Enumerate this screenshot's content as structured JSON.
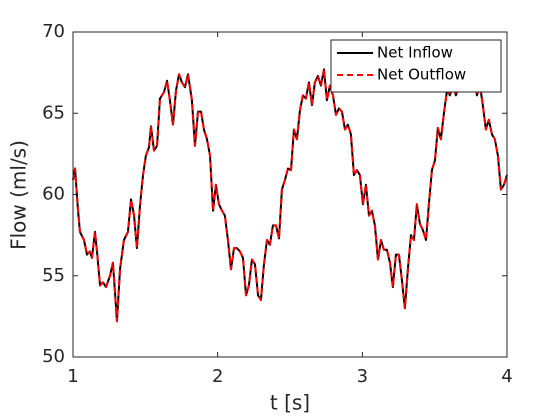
{
  "chart_data": {
    "type": "line",
    "xlabel": "t [s]",
    "ylabel": "Flow (ml/s)",
    "x": [
      1.0,
      1.014,
      1.035,
      1.048,
      1.076,
      1.097,
      1.117,
      1.131,
      1.152,
      1.166,
      1.187,
      1.207,
      1.228,
      1.256,
      1.276,
      1.304,
      1.325,
      1.352,
      1.38,
      1.401,
      1.422,
      1.442,
      1.463,
      1.484,
      1.504,
      1.525,
      1.539,
      1.56,
      1.581,
      1.601,
      1.629,
      1.65,
      1.67,
      1.691,
      1.712,
      1.733,
      1.753,
      1.774,
      1.795,
      1.822,
      1.843,
      1.864,
      1.885,
      1.905,
      1.926,
      1.947,
      1.968,
      1.988,
      2.009,
      2.03,
      2.05,
      2.071,
      2.092,
      2.113,
      2.133,
      2.154,
      2.175,
      2.196,
      2.216,
      2.237,
      2.258,
      2.279,
      2.299,
      2.32,
      2.341,
      2.361,
      2.382,
      2.403,
      2.424,
      2.444,
      2.465,
      2.486,
      2.507,
      2.527,
      2.548,
      2.569,
      2.589,
      2.61,
      2.631,
      2.652,
      2.672,
      2.693,
      2.714,
      2.735,
      2.755,
      2.776,
      2.797,
      2.818,
      2.838,
      2.859,
      2.88,
      2.9,
      2.921,
      2.942,
      2.963,
      2.983,
      3.004,
      3.025,
      3.046,
      3.066,
      3.087,
      3.108,
      3.129,
      3.149,
      3.17,
      3.191,
      3.211,
      3.232,
      3.253,
      3.274,
      3.294,
      3.315,
      3.336,
      3.357,
      3.377,
      3.398,
      3.419,
      3.44,
      3.46,
      3.481,
      3.502,
      3.522,
      3.543,
      3.564,
      3.585,
      3.605,
      3.626,
      3.647,
      3.668,
      3.688,
      3.709,
      3.73,
      3.751,
      3.771,
      3.792,
      3.813,
      3.833,
      3.854,
      3.875,
      3.896,
      3.916,
      3.937,
      3.958,
      3.979,
      4.0
    ],
    "series": [
      {
        "name": "Net Inflow",
        "color": "#000000",
        "dash": "solid",
        "values": [
          60.9,
          61.6,
          59,
          57.7,
          57.2,
          56.3,
          56.5,
          56.1,
          57.7,
          56.5,
          54.4,
          54.6,
          54.3,
          55,
          55.8,
          52.2,
          55.4,
          57.2,
          57.7,
          59.7,
          58.7,
          56.7,
          59.3,
          61.2,
          62.4,
          62.9,
          64.2,
          62.7,
          63,
          65.9,
          66.3,
          67,
          65.8,
          64.3,
          66.4,
          67.4,
          66.9,
          66.6,
          67.4,
          65.8,
          63,
          65.1,
          65.1,
          64,
          63.4,
          62.4,
          59,
          60.6,
          59.4,
          59,
          58.7,
          57.2,
          55.4,
          56.7,
          56.7,
          56.5,
          56.1,
          53.8,
          54.4,
          56,
          55.7,
          53.8,
          53.5,
          55.7,
          57.2,
          56.9,
          58.1,
          58.1,
          57.3,
          60.3,
          60.9,
          61.6,
          61.5,
          64,
          63.4,
          65.2,
          66.1,
          65.9,
          66.9,
          65.5,
          66.9,
          67.3,
          66.7,
          67.7,
          65.8,
          66.7,
          66.1,
          64.9,
          65.3,
          65.1,
          64,
          64.3,
          63.7,
          61.2,
          61.5,
          61.2,
          59.4,
          60.6,
          58.7,
          59,
          58.1,
          56,
          57.2,
          56.6,
          56.6,
          55.8,
          54.3,
          56.3,
          56.3,
          54.7,
          53,
          55.4,
          57.5,
          57.2,
          59.4,
          58.2,
          57.8,
          57.2,
          59.4,
          61.5,
          62.1,
          64.1,
          63.4,
          65,
          66.4,
          66.1,
          66.7,
          66.1,
          66.7,
          67.7,
          67,
          67.7,
          66.7,
          67.4,
          66.1,
          66.7,
          65.5,
          64,
          64.6,
          63.7,
          63.4,
          62.4,
          60.3,
          60.6,
          61.2
        ]
      },
      {
        "name": "Net Outflow",
        "color": "#ff0000",
        "dash": "dashed",
        "values": [
          60.9,
          61.6,
          59,
          57.7,
          57.2,
          56.3,
          56.5,
          56.1,
          57.7,
          56.5,
          54.4,
          54.6,
          54.3,
          55,
          55.8,
          52.2,
          55.4,
          57.2,
          57.7,
          59.7,
          58.7,
          56.7,
          59.3,
          61.2,
          62.4,
          62.9,
          64.2,
          62.7,
          63,
          65.9,
          66.3,
          67,
          65.8,
          64.3,
          66.4,
          67.4,
          66.9,
          66.6,
          67.4,
          65.8,
          63,
          65.1,
          65.1,
          64,
          63.4,
          62.4,
          59,
          60.6,
          59.4,
          59,
          58.7,
          57.2,
          55.4,
          56.7,
          56.7,
          56.5,
          56.1,
          53.8,
          54.4,
          56,
          55.7,
          53.8,
          53.5,
          55.7,
          57.2,
          56.9,
          58.1,
          58.1,
          57.3,
          60.3,
          60.9,
          61.6,
          61.5,
          64,
          63.4,
          65.2,
          66.1,
          65.9,
          66.9,
          65.5,
          66.9,
          67.3,
          66.7,
          67.7,
          65.8,
          66.7,
          66.1,
          64.9,
          65.3,
          65.1,
          64,
          64.3,
          63.7,
          61.2,
          61.5,
          61.2,
          59.4,
          60.6,
          58.7,
          59,
          58.1,
          56,
          57.2,
          56.6,
          56.6,
          55.8,
          54.3,
          56.3,
          56.3,
          54.7,
          53,
          55.4,
          57.5,
          57.2,
          59.4,
          58.2,
          57.8,
          57.2,
          59.4,
          61.5,
          62.1,
          64.1,
          63.4,
          65,
          66.4,
          66.1,
          66.7,
          66.1,
          66.7,
          67.7,
          67,
          67.7,
          66.7,
          67.4,
          66.1,
          66.7,
          65.5,
          64,
          64.6,
          63.7,
          63.4,
          62.4,
          60.3,
          60.6,
          61.2
        ]
      }
    ],
    "xlim": [
      1,
      4
    ],
    "xticks": [
      1,
      2,
      3,
      4
    ],
    "ylim": [
      50,
      70
    ],
    "yticks": [
      50,
      55,
      60,
      65,
      70
    ],
    "legend": "northeast",
    "grid": false
  }
}
